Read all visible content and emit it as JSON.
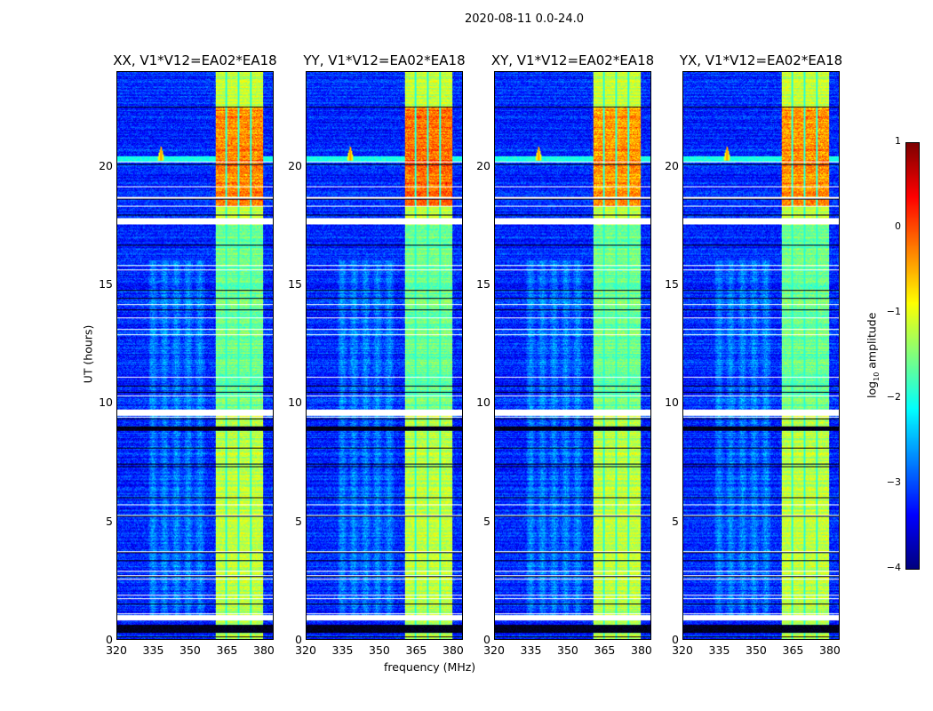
{
  "chart_data": {
    "type": "heatmap",
    "title": "2020-08-11 0.0-24.0",
    "xlabel": "frequency (MHz)",
    "ylabel": "UT (hours)",
    "xlim": [
      320,
      384
    ],
    "ylim": [
      0,
      24
    ],
    "xticks": [
      "320",
      "335",
      "350",
      "365",
      "380"
    ],
    "xtick_values": [
      320,
      335,
      350,
      365,
      380
    ],
    "yticks": [
      "0",
      "5",
      "10",
      "15",
      "20"
    ],
    "ytick_values": [
      0,
      5,
      10,
      15,
      20
    ],
    "panels": [
      {
        "title": "XX, V1*V12=EA02*EA18",
        "rfi_scale": 1.0
      },
      {
        "title": "YY, V1*V12=EA02*EA18",
        "rfi_scale": 1.15
      },
      {
        "title": "XY, V1*V12=EA02*EA18",
        "rfi_scale": 0.9
      },
      {
        "title": "YX, V1*V12=EA02*EA18",
        "rfi_scale": 0.95
      }
    ],
    "colorbar": {
      "label": "log10 amplitude",
      "label_main": "log",
      "label_sub": "10",
      "label_rest": " amplitude",
      "colormap": "jet",
      "vmin": -4,
      "vmax": 1,
      "ticks": [
        "1",
        "0",
        "−1",
        "−2",
        "−3",
        "−4"
      ],
      "tick_values": [
        1,
        0,
        -1,
        -2,
        -3,
        -4
      ]
    },
    "features": {
      "background_level": -3.2,
      "rfi_band_mhz": [
        360.5,
        380
      ],
      "rfi_level": -1.2,
      "rfi_strong_hours": [
        18.3,
        22.5
      ],
      "rfi_gap_mhz": [
        365,
        370,
        375
      ],
      "spike_mhz": 338,
      "spike_hour": 20.3,
      "flagged_white_hours": [
        [
          17.55,
          17.8
        ],
        [
          9.45,
          9.7
        ],
        [
          0.8,
          1.0
        ]
      ],
      "flagged_black_hours": [
        [
          8.8,
          9.0
        ],
        [
          0.25,
          0.6
        ]
      ]
    }
  }
}
